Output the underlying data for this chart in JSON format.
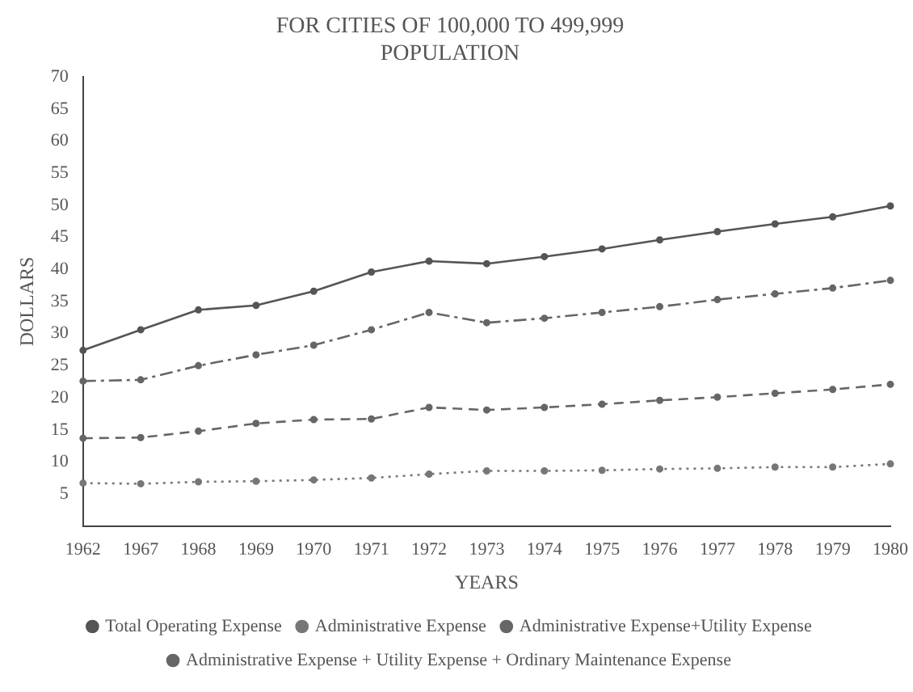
{
  "chart_data": {
    "type": "line",
    "title": [
      "FOR CITIES OF 100,000 TO 499,999",
      "POPULATION"
    ],
    "xlabel": "YEARS",
    "ylabel": "DOLLARS",
    "categories": [
      "1962",
      "1967",
      "1968",
      "1969",
      "1970",
      "1971",
      "1972",
      "1973",
      "1974",
      "1975",
      "1976",
      "1977",
      "1978",
      "1979",
      "1980"
    ],
    "series": [
      {
        "name": "Total Operating Expense",
        "color": "#555555",
        "line_style": "solid",
        "values": [
          27.4,
          30.6,
          33.7,
          34.4,
          36.6,
          39.6,
          41.3,
          40.9,
          42.0,
          43.2,
          44.6,
          45.9,
          47.1,
          48.2,
          49.9
        ]
      },
      {
        "name": "Administrative Expense",
        "color": "#777777",
        "line_style": "dotted",
        "values": [
          6.7,
          6.6,
          6.9,
          7.0,
          7.2,
          7.5,
          8.1,
          8.6,
          8.6,
          8.7,
          8.9,
          9.0,
          9.2,
          9.2,
          9.7
        ]
      },
      {
        "name": "Administrative Expense+Utility Expense",
        "color": "#666666",
        "line_style": "dashed",
        "values": [
          13.7,
          13.8,
          14.8,
          16.0,
          16.6,
          16.7,
          18.5,
          18.1,
          18.5,
          19.0,
          19.6,
          20.1,
          20.7,
          21.3,
          22.1
        ]
      },
      {
        "name": "Administrative Expense + Utility Expense + Ordinary Maintenance Expense",
        "color": "#666666",
        "line_style": "dashdot",
        "values": [
          22.6,
          22.8,
          25.0,
          26.7,
          28.2,
          30.6,
          33.3,
          31.7,
          32.4,
          33.3,
          34.2,
          35.3,
          36.2,
          37.1,
          38.3
        ]
      }
    ],
    "ylim": [
      0,
      70
    ],
    "yticks": [
      5,
      10,
      15,
      20,
      25,
      30,
      35,
      40,
      45,
      50,
      55,
      60,
      65,
      70
    ],
    "grid": false,
    "legend": "bottom",
    "marker": "circle"
  }
}
